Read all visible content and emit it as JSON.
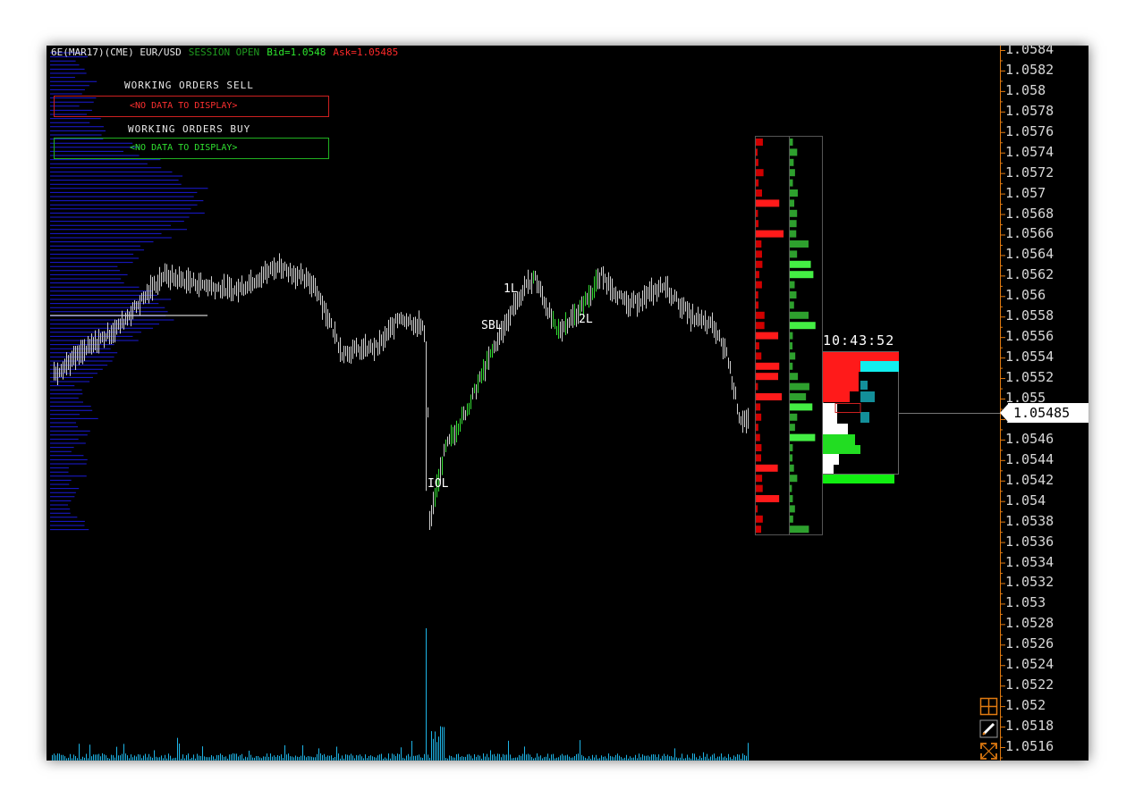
{
  "header": {
    "symbol": "6E(MAR17)(CME) EUR/USD",
    "session": "SESSION OPEN",
    "bid": "Bid=1.0548",
    "ask": "Ask=1.05485"
  },
  "working_orders": {
    "sell_title": "WORKING ORDERS SELL",
    "sell_empty": "<NO DATA TO DISPLAY>",
    "buy_title": "WORKING ORDERS BUY",
    "buy_empty": "<NO DATA TO DISPLAY>"
  },
  "clock": "10:43:52",
  "trade_labels": {
    "l1": "1L",
    "sbl": "SBL",
    "l2": "2L",
    "iol": "IOL"
  },
  "last_price": "1.05485",
  "price_axis": {
    "min": 1.0516,
    "max": 1.0584,
    "labels": [
      "1.0584",
      "1.0582",
      "1.058",
      "1.0578",
      "1.0576",
      "1.0574",
      "1.0572",
      "1.057",
      "1.0568",
      "1.0566",
      "1.0564",
      "1.0562",
      "1.056",
      "1.0558",
      "1.0556",
      "1.0554",
      "1.0552",
      "1.055",
      "1.0548",
      "1.0546",
      "1.0544",
      "1.0542",
      "1.054",
      "1.0538",
      "1.0536",
      "1.0534",
      "1.0532",
      "1.053",
      "1.0528",
      "1.0526",
      "1.0524",
      "1.0522",
      "1.052",
      "1.0518",
      "1.0516"
    ]
  },
  "tools": {
    "crosshair": "crosshair-icon",
    "pencil": "pencil-icon",
    "fullscreen": "fullscreen-icon"
  },
  "colors": {
    "background": "#000000",
    "session": "#1f9a1f",
    "bid": "#2ee62e",
    "ask": "#ff2a2a",
    "axis": "#e07a10",
    "volume": "#1eb4e6",
    "profile": "#1a1ad8",
    "sell_dom": "#d00000",
    "buy_dom": "#2ea02e"
  }
}
